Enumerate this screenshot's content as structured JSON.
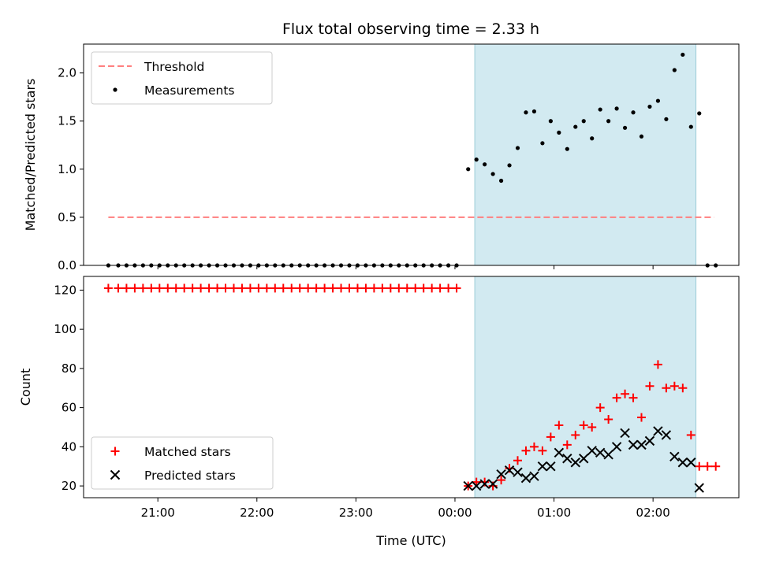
{
  "title": "Flux total observing time = 2.33 h",
  "colors": {
    "threshold": "#ff7f7f",
    "measurement": "#000000",
    "matched": "#ff0000",
    "predicted": "#000000",
    "shade": "#add8e6"
  },
  "chart_data": [
    {
      "type": "scatter",
      "ylabel": "Matched/Predicted stars",
      "xlim": [
        "20:15",
        "02:52"
      ],
      "ylim": [
        0,
        2.3
      ],
      "yticks": [
        "0.0",
        "0.5",
        "1.0",
        "1.5",
        "2.0"
      ],
      "legend_position": "top-left",
      "shaded_region": {
        "from": "00:12",
        "to": "02:26"
      },
      "threshold": {
        "name": "Threshold",
        "value": 0.5,
        "x_from": "20:30",
        "x_to": "02:37"
      },
      "series": [
        {
          "name": "Measurements",
          "points": [
            [
              "20:30",
              0
            ],
            [
              "20:36",
              0
            ],
            [
              "20:41",
              0
            ],
            [
              "20:46",
              0
            ],
            [
              "20:51",
              0
            ],
            [
              "20:56",
              0
            ],
            [
              "21:01",
              0
            ],
            [
              "21:06",
              0
            ],
            [
              "21:11",
              0
            ],
            [
              "21:16",
              0
            ],
            [
              "21:21",
              0
            ],
            [
              "21:26",
              0
            ],
            [
              "21:31",
              0
            ],
            [
              "21:36",
              0
            ],
            [
              "21:41",
              0
            ],
            [
              "21:46",
              0
            ],
            [
              "21:51",
              0
            ],
            [
              "21:56",
              0
            ],
            [
              "22:01",
              0
            ],
            [
              "22:06",
              0
            ],
            [
              "22:11",
              0
            ],
            [
              "22:16",
              0
            ],
            [
              "22:21",
              0
            ],
            [
              "22:26",
              0
            ],
            [
              "22:31",
              0
            ],
            [
              "22:36",
              0
            ],
            [
              "22:41",
              0
            ],
            [
              "22:46",
              0
            ],
            [
              "22:51",
              0
            ],
            [
              "22:56",
              0
            ],
            [
              "23:01",
              0
            ],
            [
              "23:06",
              0
            ],
            [
              "23:11",
              0
            ],
            [
              "23:16",
              0
            ],
            [
              "23:21",
              0
            ],
            [
              "23:26",
              0
            ],
            [
              "23:31",
              0
            ],
            [
              "23:36",
              0
            ],
            [
              "23:41",
              0
            ],
            [
              "23:46",
              0
            ],
            [
              "23:51",
              0
            ],
            [
              "23:56",
              0
            ],
            [
              "00:01",
              0
            ],
            [
              "00:08",
              1.0
            ],
            [
              "00:13",
              1.1
            ],
            [
              "00:18",
              1.05
            ],
            [
              "00:23",
              0.95
            ],
            [
              "00:28",
              0.88
            ],
            [
              "00:33",
              1.04
            ],
            [
              "00:38",
              1.22
            ],
            [
              "00:43",
              1.59
            ],
            [
              "00:48",
              1.6
            ],
            [
              "00:53",
              1.27
            ],
            [
              "00:58",
              1.5
            ],
            [
              "01:03",
              1.38
            ],
            [
              "01:08",
              1.21
            ],
            [
              "01:13",
              1.44
            ],
            [
              "01:18",
              1.5
            ],
            [
              "01:23",
              1.32
            ],
            [
              "01:28",
              1.62
            ],
            [
              "01:33",
              1.5
            ],
            [
              "01:38",
              1.63
            ],
            [
              "01:43",
              1.43
            ],
            [
              "01:48",
              1.59
            ],
            [
              "01:53",
              1.34
            ],
            [
              "01:58",
              1.65
            ],
            [
              "02:03",
              1.71
            ],
            [
              "02:08",
              1.52
            ],
            [
              "02:13",
              2.03
            ],
            [
              "02:18",
              2.19
            ],
            [
              "02:23",
              1.44
            ],
            [
              "02:28",
              1.58
            ],
            [
              "02:33",
              0
            ],
            [
              "02:38",
              0
            ]
          ]
        }
      ]
    },
    {
      "type": "scatter",
      "ylabel": "Count",
      "xlabel": "Time (UTC)",
      "xlim": [
        "20:15",
        "02:52"
      ],
      "ylim": [
        14,
        127
      ],
      "yticks": [
        "20",
        "40",
        "60",
        "80",
        "100",
        "120"
      ],
      "xticks": [
        "21:00",
        "22:00",
        "23:00",
        "00:00",
        "01:00",
        "02:00"
      ],
      "legend_position": "bottom-left",
      "shaded_region": {
        "from": "00:12",
        "to": "02:26"
      },
      "series": [
        {
          "name": "Matched stars",
          "points": [
            [
              "20:30",
              121
            ],
            [
              "20:36",
              121
            ],
            [
              "20:41",
              121
            ],
            [
              "20:46",
              121
            ],
            [
              "20:51",
              121
            ],
            [
              "20:56",
              121
            ],
            [
              "21:01",
              121
            ],
            [
              "21:06",
              121
            ],
            [
              "21:11",
              121
            ],
            [
              "21:16",
              121
            ],
            [
              "21:21",
              121
            ],
            [
              "21:26",
              121
            ],
            [
              "21:31",
              121
            ],
            [
              "21:36",
              121
            ],
            [
              "21:41",
              121
            ],
            [
              "21:46",
              121
            ],
            [
              "21:51",
              121
            ],
            [
              "21:56",
              121
            ],
            [
              "22:01",
              121
            ],
            [
              "22:06",
              121
            ],
            [
              "22:11",
              121
            ],
            [
              "22:16",
              121
            ],
            [
              "22:21",
              121
            ],
            [
              "22:26",
              121
            ],
            [
              "22:31",
              121
            ],
            [
              "22:36",
              121
            ],
            [
              "22:41",
              121
            ],
            [
              "22:46",
              121
            ],
            [
              "22:51",
              121
            ],
            [
              "22:56",
              121
            ],
            [
              "23:01",
              121
            ],
            [
              "23:06",
              121
            ],
            [
              "23:11",
              121
            ],
            [
              "23:16",
              121
            ],
            [
              "23:21",
              121
            ],
            [
              "23:26",
              121
            ],
            [
              "23:31",
              121
            ],
            [
              "23:36",
              121
            ],
            [
              "23:41",
              121
            ],
            [
              "23:46",
              121
            ],
            [
              "23:51",
              121
            ],
            [
              "23:56",
              121
            ],
            [
              "00:01",
              121
            ],
            [
              "00:08",
              20
            ],
            [
              "00:13",
              22
            ],
            [
              "00:18",
              22
            ],
            [
              "00:23",
              20
            ],
            [
              "00:28",
              23
            ],
            [
              "00:33",
              29
            ],
            [
              "00:38",
              33
            ],
            [
              "00:43",
              38
            ],
            [
              "00:48",
              40
            ],
            [
              "00:53",
              38
            ],
            [
              "00:58",
              45
            ],
            [
              "01:03",
              51
            ],
            [
              "01:08",
              41
            ],
            [
              "01:13",
              46
            ],
            [
              "01:18",
              51
            ],
            [
              "01:23",
              50
            ],
            [
              "01:28",
              60
            ],
            [
              "01:33",
              54
            ],
            [
              "01:38",
              65
            ],
            [
              "01:43",
              67
            ],
            [
              "01:48",
              65
            ],
            [
              "01:53",
              55
            ],
            [
              "01:58",
              71
            ],
            [
              "02:03",
              82
            ],
            [
              "02:08",
              70
            ],
            [
              "02:13",
              71
            ],
            [
              "02:18",
              70
            ],
            [
              "02:23",
              46
            ],
            [
              "02:28",
              30
            ],
            [
              "02:33",
              30
            ],
            [
              "02:38",
              30
            ]
          ]
        },
        {
          "name": "Predicted stars",
          "points": [
            [
              "00:08",
              20
            ],
            [
              "00:13",
              20
            ],
            [
              "00:18",
              21
            ],
            [
              "00:23",
              21
            ],
            [
              "00:28",
              26
            ],
            [
              "00:33",
              28
            ],
            [
              "00:38",
              27
            ],
            [
              "00:43",
              24
            ],
            [
              "00:48",
              25
            ],
            [
              "00:53",
              30
            ],
            [
              "00:58",
              30
            ],
            [
              "01:03",
              37
            ],
            [
              "01:08",
              34
            ],
            [
              "01:13",
              32
            ],
            [
              "01:18",
              34
            ],
            [
              "01:23",
              38
            ],
            [
              "01:28",
              37
            ],
            [
              "01:33",
              36
            ],
            [
              "01:38",
              40
            ],
            [
              "01:43",
              47
            ],
            [
              "01:48",
              41
            ],
            [
              "01:53",
              41
            ],
            [
              "01:58",
              43
            ],
            [
              "02:03",
              48
            ],
            [
              "02:08",
              46
            ],
            [
              "02:13",
              35
            ],
            [
              "02:18",
              32
            ],
            [
              "02:23",
              32
            ],
            [
              "02:28",
              19
            ]
          ]
        }
      ]
    }
  ]
}
